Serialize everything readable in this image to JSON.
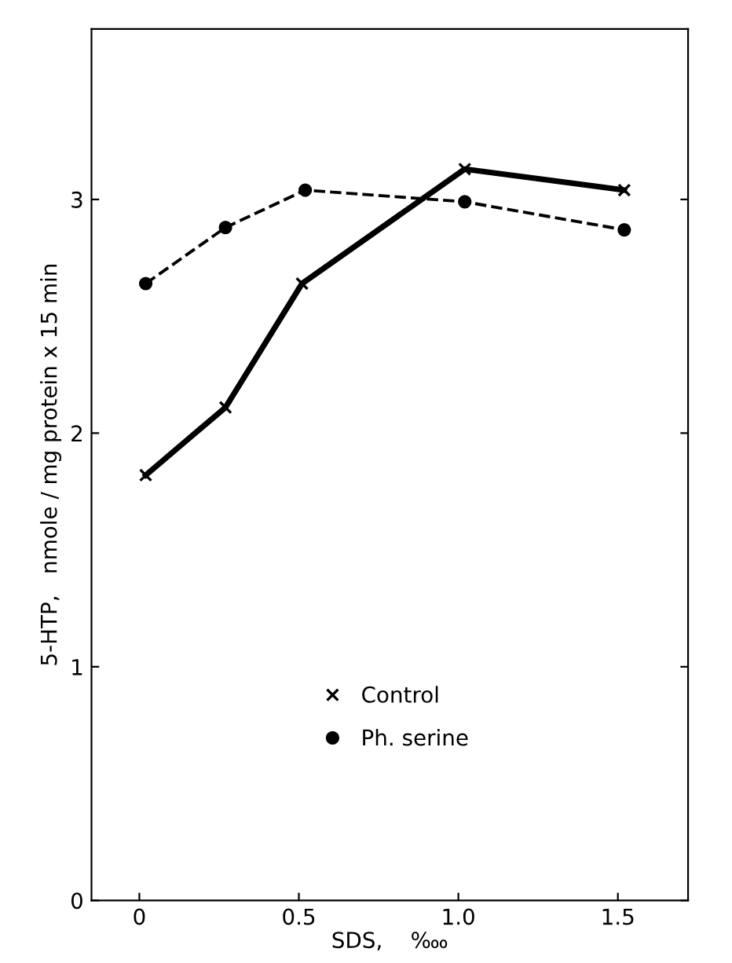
{
  "chart_data": {
    "type": "line",
    "xlabel": "SDS,    ‱",
    "ylabel": "5-HTP,   nmole / mg protein x 15 min",
    "xlim": [
      -0.15,
      1.72
    ],
    "ylim": [
      0,
      3.73
    ],
    "xticks": [
      0,
      0.5,
      {
        "value": 1,
        "label": "1.0"
      },
      1.5
    ],
    "yticks": [
      0,
      1,
      2,
      3
    ],
    "grid": false,
    "legend": "bottom",
    "series": [
      {
        "name": "Control",
        "color": "#000000",
        "marker": "cross",
        "line_style": "solid",
        "x": [
          0.02,
          0.27,
          0.51,
          1.02,
          1.52
        ],
        "values": [
          1.82,
          2.11,
          2.64,
          3.13,
          3.04
        ]
      },
      {
        "name": "Ph. serine",
        "color": "#000000",
        "marker": "circle",
        "line_style": "dashed",
        "x": [
          0.02,
          0.27,
          0.52,
          1.02,
          1.52
        ],
        "values": [
          2.64,
          2.88,
          3.04,
          2.99,
          2.87
        ]
      }
    ]
  }
}
